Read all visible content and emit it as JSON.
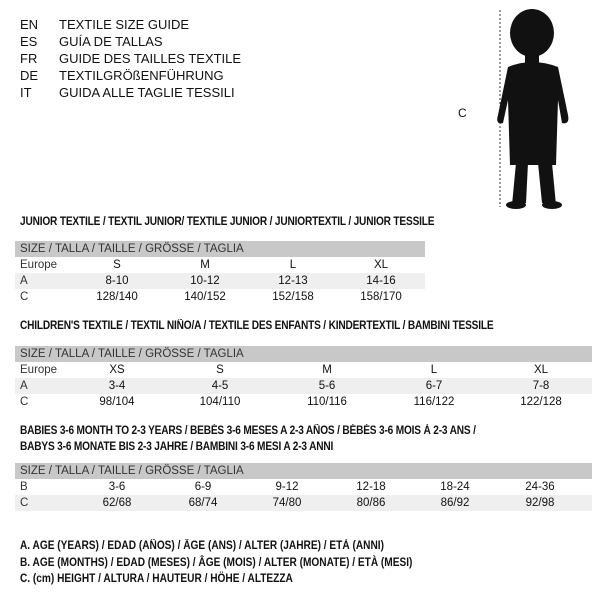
{
  "languages": [
    {
      "code": "EN",
      "text": "TEXTILE SIZE GUIDE"
    },
    {
      "code": "ES",
      "text": "GUÍA DE TALLAS"
    },
    {
      "code": "FR",
      "text": "GUIDE DES TAILLES TEXTILE"
    },
    {
      "code": "DE",
      "text": "TEXTILGRÖßENFÜHRUNG"
    },
    {
      "code": "IT",
      "text": "GUIDA ALLE TAGLIE TESSILI"
    }
  ],
  "figure": {
    "measure_label": "C",
    "icon": "child-silhouette"
  },
  "size_header": "SIZE / TALLA / TAILLE / GRÖSSE / TAGLIA",
  "junior": {
    "title": "JUNIOR TEXTILE / TEXTIL JUNIOR/ TEXTILE JUNIOR / JUNIORTEXTIL / JUNIOR TESSILE",
    "rows": [
      {
        "label": "Europe",
        "values": [
          "S",
          "M",
          "L",
          "XL"
        ]
      },
      {
        "label": "A",
        "values": [
          "8-10",
          "10-12",
          "12-13",
          "14-16"
        ]
      },
      {
        "label": "C",
        "values": [
          "128/140",
          "140/152",
          "152/158",
          "158/170"
        ]
      }
    ]
  },
  "children": {
    "title": "CHILDREN'S TEXTILE / TEXTIL NIÑO/A / TEXTILE DES ENFANTS / KINDERTEXTIL / BAMBINI TESSILE",
    "rows": [
      {
        "label": "Europe",
        "values": [
          "XS",
          "S",
          "M",
          "L",
          "XL"
        ]
      },
      {
        "label": "A",
        "values": [
          "3-4",
          "4-5",
          "5-6",
          "6-7",
          "7-8"
        ]
      },
      {
        "label": "C",
        "values": [
          "98/104",
          "104/110",
          "110/116",
          "116/122",
          "122/128"
        ]
      }
    ]
  },
  "babies": {
    "title_line1": "BABIES 3-6 MONTH TO 2-3 YEARS / BEBÉS 3-6 MESES A 2-3 AÑOS / BÉBÉS 3-6 MOIS À 2-3 ANS /",
    "title_line2": "BABYS 3-6 MONATE BIS 2-3 JAHRE / BAMBINI 3-6 MESI A 2-3 ANNI",
    "rows": [
      {
        "label": "B",
        "values": [
          "3-6",
          "6-9",
          "9-12",
          "12-18",
          "18-24",
          "24-36"
        ]
      },
      {
        "label": "C",
        "values": [
          "62/68",
          "68/74",
          "74/80",
          "80/86",
          "86/92",
          "92/98"
        ]
      }
    ]
  },
  "legend": [
    "A. AGE (YEARS) / EDAD (AÑOS) / ÂGE (ANS) / ALTER (JAHRE) / ETÀ (ANNI)",
    "B. AGE (MONTHS) / EDAD (MESES) / ÂGE (MOIS) / ALTER (MONATE) / ETÀ (MESI)",
    "C. (cm) HEIGHT / ALTURA / HAUTEUR / HÖHE / ALTEZZA"
  ]
}
